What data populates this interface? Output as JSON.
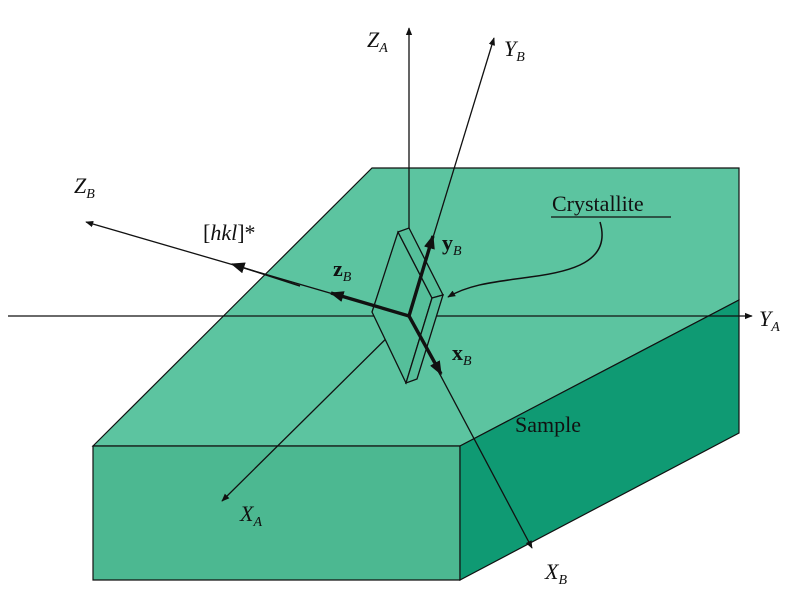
{
  "colors": {
    "top_face": "#5cc4a0",
    "front_face": "#4cb891",
    "side_face": "#0f9a73",
    "crystal_face": "#55bf9a",
    "line": "#111111"
  },
  "labels": {
    "z_a": {
      "main": "Z",
      "sub": "A"
    },
    "y_b": {
      "main": "Y",
      "sub": "B"
    },
    "z_b": {
      "main": "Z",
      "sub": "B"
    },
    "y_a": {
      "main": "Y",
      "sub": "A"
    },
    "x_a": {
      "main": "X",
      "sub": "A"
    },
    "x_b": {
      "main": "X",
      "sub": "B"
    },
    "hkl": {
      "open": "[",
      "main": "hkl",
      "close": "]*"
    },
    "z_b_vec": {
      "main": "z",
      "sub": "B"
    },
    "y_b_vec": {
      "main": "y",
      "sub": "B"
    },
    "x_b_vec": {
      "main": "x",
      "sub": "B"
    },
    "crystallite": "Crystallite",
    "sample": "Sample"
  }
}
